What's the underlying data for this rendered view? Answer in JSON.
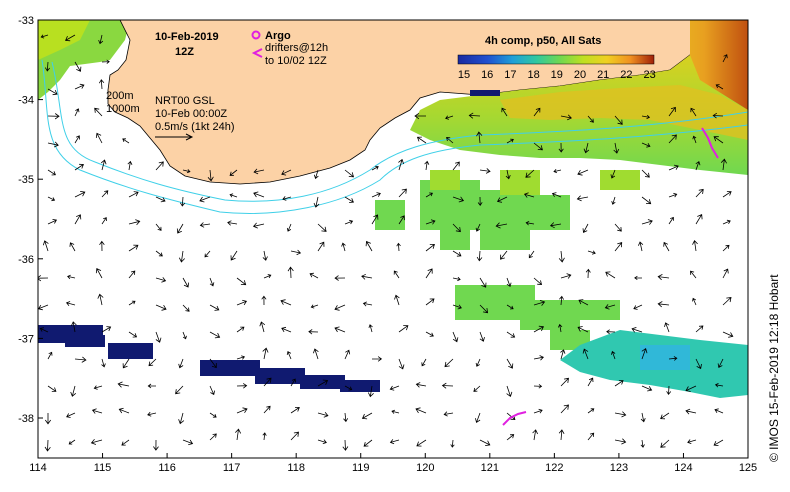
{
  "map": {
    "title_date": "10-Feb-2019",
    "title_hour": "12Z",
    "legend": {
      "argo_label": "Argo",
      "drifter_label_1": "drifters@12h",
      "drifter_label_2": "to 10/02 12Z",
      "argo_color": "#e020e0",
      "drifter_color": "#e020e0"
    },
    "isobaths": {
      "label_1": "200m",
      "label_2": "1000m",
      "line_color": "#40d0e8"
    },
    "current_info": {
      "line_1": "NRT00 GSL",
      "line_2": "10-Feb 00:00Z",
      "line_3": "0.5m/s (1kt 24h)"
    },
    "colorbar": {
      "title": "4h comp, p50, All Sats",
      "ticks": [
        "15",
        "16",
        "17",
        "18",
        "19",
        "20",
        "21",
        "22",
        "23"
      ],
      "colors": [
        "#1a2aa0",
        "#2050d0",
        "#20a0d8",
        "#30c8a0",
        "#70d850",
        "#c0e020",
        "#f0d020",
        "#f09020",
        "#e04a10",
        "#a02008"
      ]
    },
    "x_ticks": [
      "114",
      "115",
      "116",
      "117",
      "118",
      "119",
      "120",
      "121",
      "122",
      "123",
      "124",
      "125"
    ],
    "y_ticks": [
      "-33",
      "-34",
      "-35",
      "-36",
      "-37",
      "-38"
    ],
    "credit": "© IMOS 15-Feb-2019 12:18 Hobart",
    "colors": {
      "land": "#fcd2a6",
      "ocean": "#ffffff",
      "cold_band": "#101a70",
      "arrow": "#000000"
    }
  }
}
